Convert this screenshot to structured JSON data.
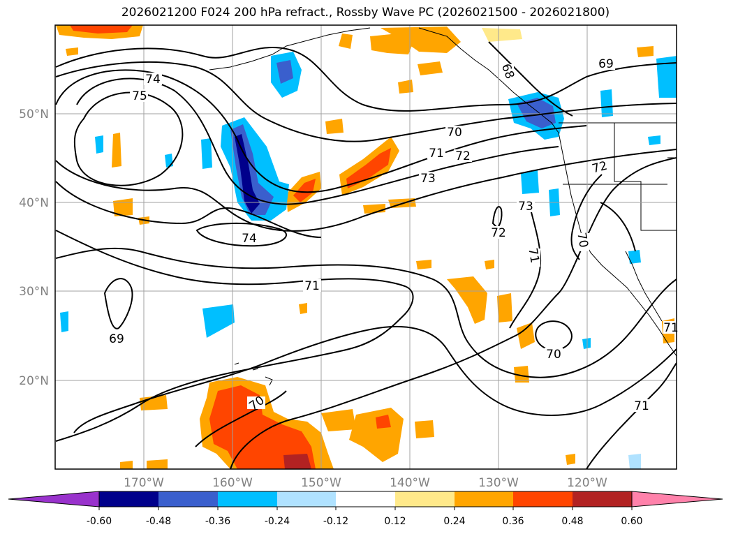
{
  "title": "2026021200 F024 200 hPa refract., Rossby Wave PC (2026021500 - 2026021800)",
  "lat_labels": [
    "50°N",
    "40°N",
    "30°N",
    "20°N"
  ],
  "lon_labels": [
    "170°W",
    "160°W",
    "150°W",
    "140°W",
    "130°W",
    "120°W"
  ],
  "contour_labels": [
    "74",
    "75",
    "69",
    "70",
    "71",
    "72",
    "73",
    "73",
    "72",
    "74",
    "71",
    "70",
    "71",
    "69",
    "70",
    "70",
    "71",
    "71",
    "68",
    "72"
  ],
  "colorbar": {
    "ticks": [
      "-0.60",
      "-0.48",
      "-0.36",
      "-0.24",
      "-0.12",
      "0.12",
      "0.24",
      "0.36",
      "0.48",
      "0.60"
    ],
    "colors": [
      "#9932cc",
      "#00008b",
      "#3a5fcd",
      "#00bfff",
      "#b0e2ff",
      "#ffffff",
      "#ffe98a",
      "#ffa500",
      "#ff4500",
      "#b22222",
      "#ff82ab"
    ]
  },
  "colors": {
    "grid": "#a0a0a0",
    "contour": "#000000",
    "axis_label": "#808080"
  }
}
